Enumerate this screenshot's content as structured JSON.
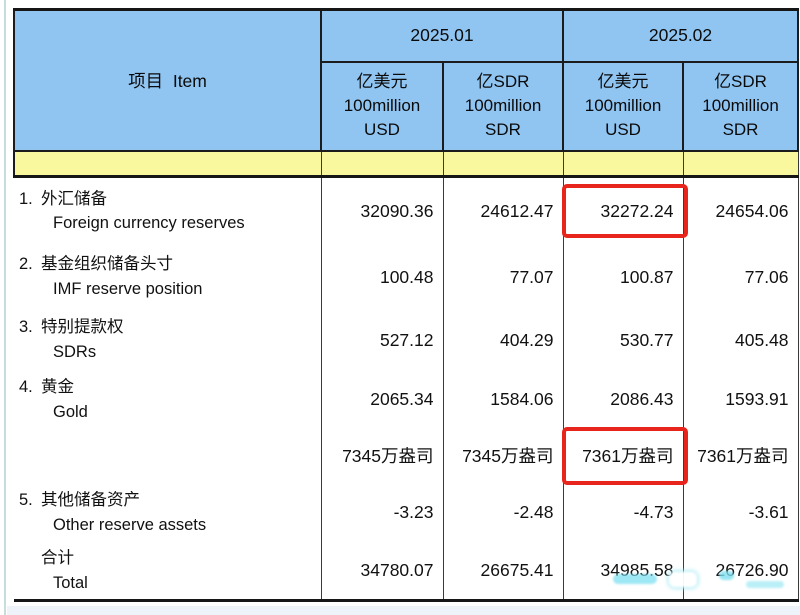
{
  "table": {
    "item_header": "项目  Item",
    "month_headers": [
      "2025.01",
      "2025.02"
    ],
    "unit_headers": [
      {
        "l1": "亿美元",
        "l2": "100million",
        "l3": "USD"
      },
      {
        "l1": "亿SDR",
        "l2": "100million",
        "l3": "SDR"
      },
      {
        "l1": "亿美元",
        "l2": "100million",
        "l3": "USD"
      },
      {
        "l1": "亿SDR",
        "l2": "100million",
        "l3": "SDR"
      }
    ],
    "rows": [
      {
        "num": "1.",
        "zh": "外汇储备",
        "en": "Foreign currency reserves",
        "v1": "32090.36",
        "v2": "24612.47",
        "v3": "32272.24",
        "v4": "24654.06"
      },
      {
        "num": "2.",
        "zh": "基金组织储备头寸",
        "en": "IMF reserve position",
        "v1": "100.48",
        "v2": "77.07",
        "v3": "100.87",
        "v4": "77.06"
      },
      {
        "num": "3.",
        "zh": "特别提款权",
        "en": "SDRs",
        "v1": "527.12",
        "v2": "404.29",
        "v3": "530.77",
        "v4": "405.48"
      },
      {
        "num": "4.",
        "zh": "黄金",
        "en": "Gold",
        "v1": "2065.34",
        "v2": "1584.06",
        "v3": "2086.43",
        "v4": "1593.91"
      },
      {
        "num": "",
        "zh": "",
        "en": "",
        "v1": "7345万盎司",
        "v2": "7345万盎司",
        "v3": "7361万盎司",
        "v4": "7361万盎司"
      },
      {
        "num": "5.",
        "zh": "其他储备资产",
        "en": "Other reserve assets",
        "v1": "-3.23",
        "v2": "-2.48",
        "v3": "-4.73",
        "v4": "-3.61"
      },
      {
        "num": "",
        "zh": "合计",
        "en": "Total",
        "v1": "34780.07",
        "v2": "26675.41",
        "v3": "34985.58",
        "v4": "26726.90"
      }
    ],
    "annotations": {
      "highlighted_values": [
        "32272.24",
        "7361万盎司"
      ],
      "highlight_color": "#e8251d",
      "smudge_color": "#7ddff0"
    },
    "colors": {
      "header_blue": "#90c5f2",
      "band_yellow": "#faf89e",
      "border_dark": "#161616"
    }
  }
}
